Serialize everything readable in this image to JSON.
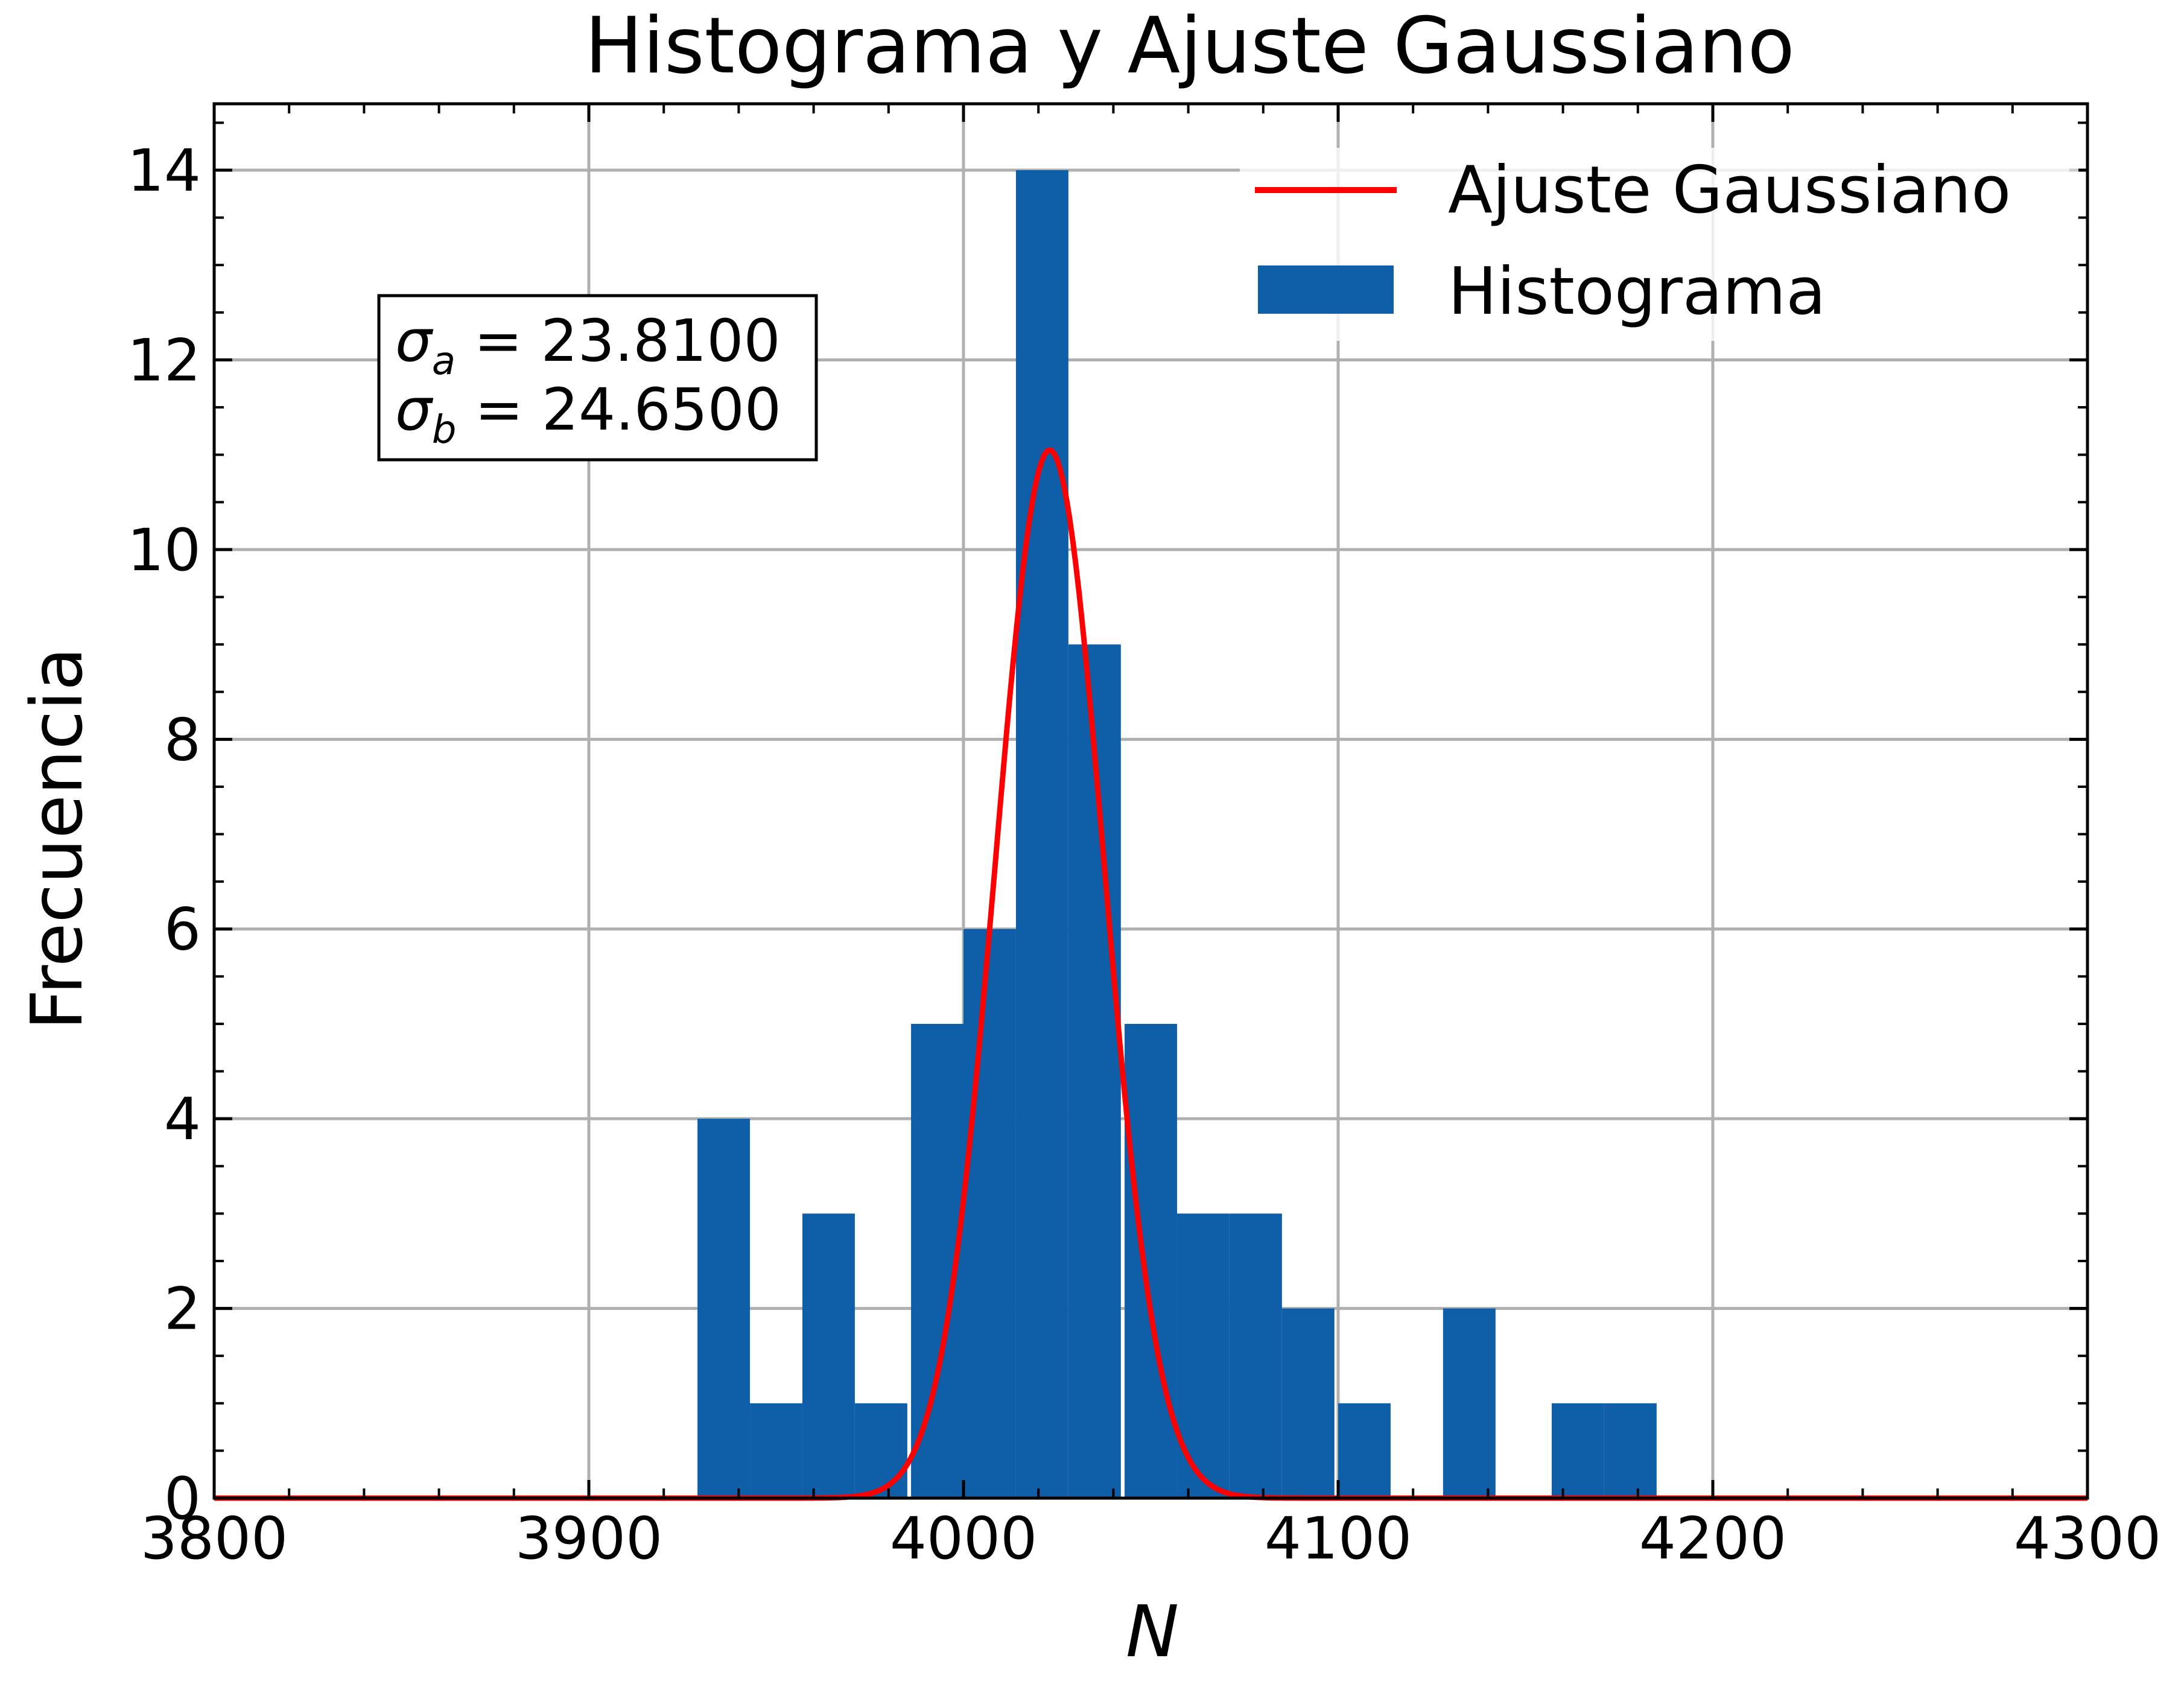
{
  "chart_data": {
    "type": "bar",
    "title": "Histograma y Ajuste Gaussiano",
    "xlabel": "N",
    "ylabel": "Frecuencia",
    "xlim": [
      3800,
      4300
    ],
    "ylim": [
      0,
      14.7
    ],
    "xticks": [
      3800,
      3900,
      4000,
      4100,
      4200,
      4300
    ],
    "yticks": [
      0,
      2,
      4,
      6,
      8,
      10,
      12,
      14
    ],
    "grid": true,
    "legend_position": "top-right",
    "series": [
      {
        "name": "Histograma",
        "type": "bar",
        "color": "#0f5ea8",
        "bin_width": 14,
        "x": [
          3936,
          3950,
          3964,
          3978,
          3993,
          4007,
          4021,
          4035,
          4050,
          4064,
          4078,
          4092,
          4107,
          4135,
          4164,
          4178
        ],
        "values": [
          4,
          1,
          3,
          1,
          5,
          6,
          14,
          9,
          5,
          3,
          3,
          2,
          1,
          2,
          1,
          1
        ]
      },
      {
        "name": "Ajuste Gaussiano",
        "type": "line",
        "color": "#ff0000",
        "amplitude": 11.05,
        "mean": 4023,
        "sigma": 14.5
      }
    ],
    "annotation": {
      "line1_symbol": "σ",
      "line1_sub": "a",
      "line1_value": " = 23.8100",
      "line2_symbol": "σ",
      "line2_sub": "b",
      "line2_value": " = 24.6500"
    }
  }
}
